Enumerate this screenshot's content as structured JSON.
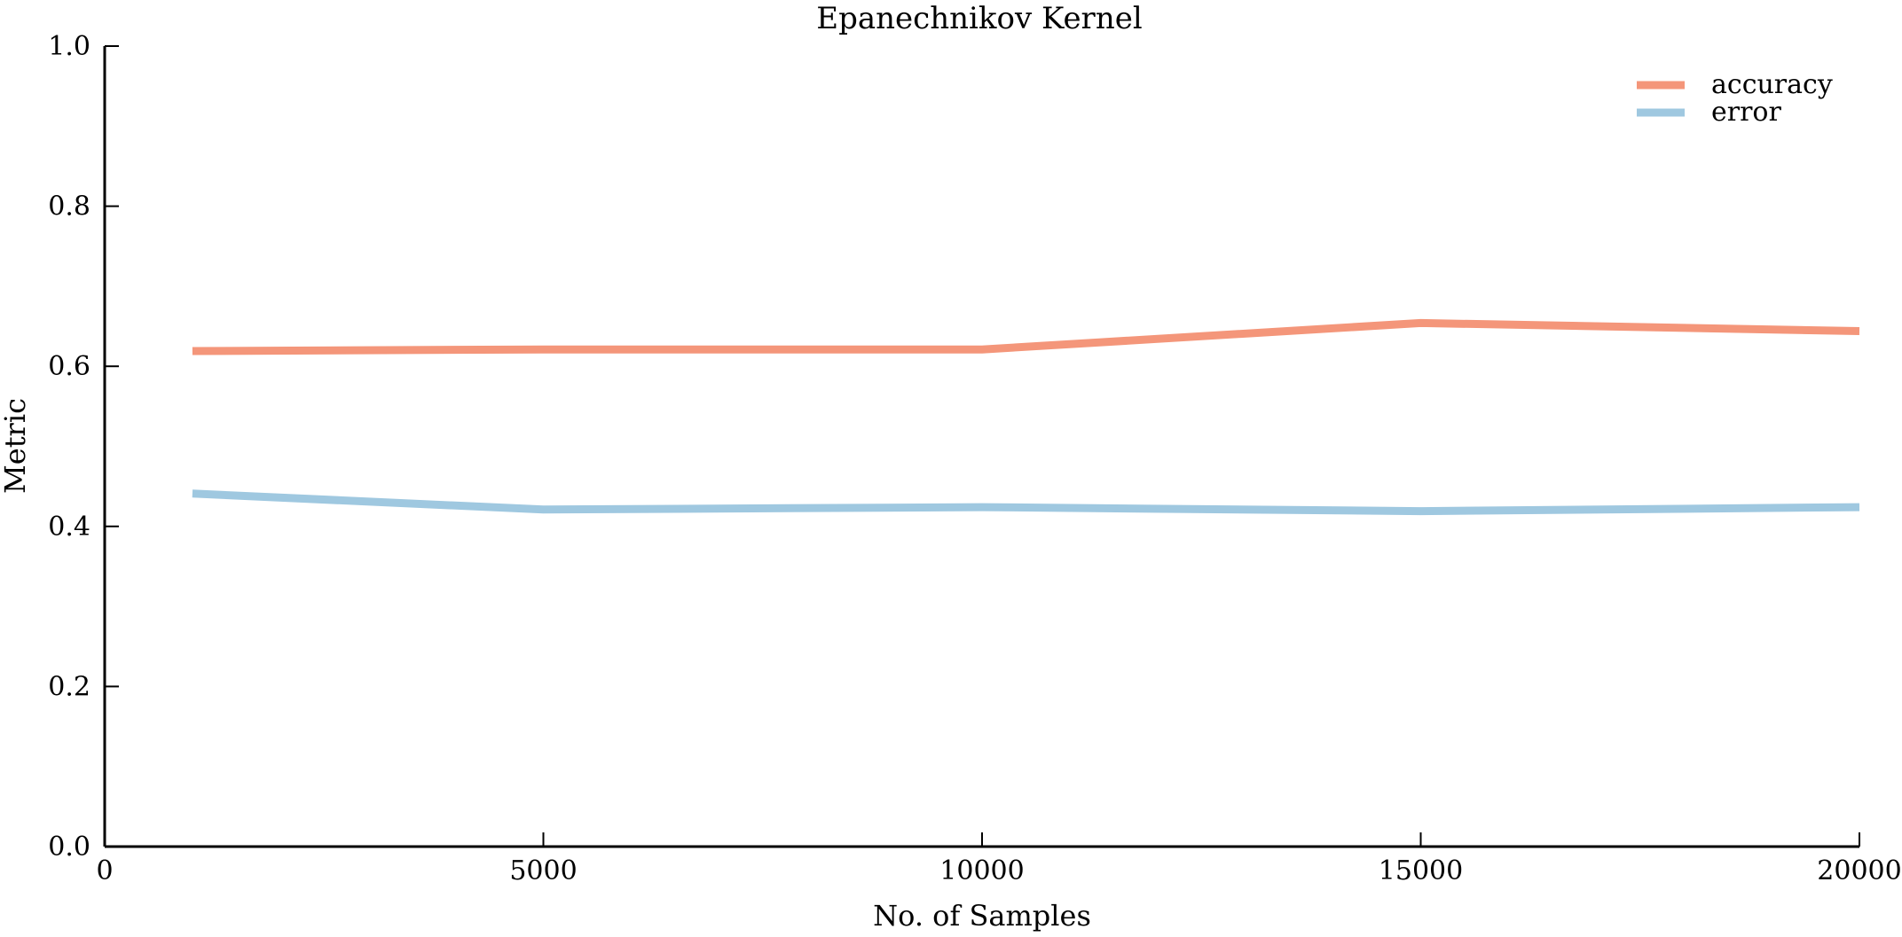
{
  "chart_data": {
    "type": "line",
    "title": "Epanechnikov Kernel",
    "xlabel": "No. of Samples",
    "ylabel": "Metric",
    "x": [
      1000,
      5000,
      10000,
      15000,
      20000
    ],
    "series": [
      {
        "name": "accuracy",
        "color": "#f4967a",
        "values": [
          0.619,
          0.621,
          0.621,
          0.654,
          0.644
        ]
      },
      {
        "name": "error",
        "color": "#9fc8e0",
        "values": [
          0.441,
          0.421,
          0.424,
          0.419,
          0.424
        ]
      }
    ],
    "xlim": [
      0,
      20000
    ],
    "ylim": [
      0.0,
      1.0
    ],
    "xticks": [
      0,
      5000,
      10000,
      15000,
      20000
    ],
    "xtick_labels": [
      "0",
      "5000",
      "10000",
      "15000",
      "20000"
    ],
    "yticks": [
      0.0,
      0.2,
      0.4,
      0.6,
      0.8,
      1.0
    ],
    "ytick_labels": [
      "0.0",
      "0.2",
      "0.4",
      "0.6",
      "0.8",
      "1.0"
    ],
    "grid": false,
    "legend_position": "top-right"
  }
}
